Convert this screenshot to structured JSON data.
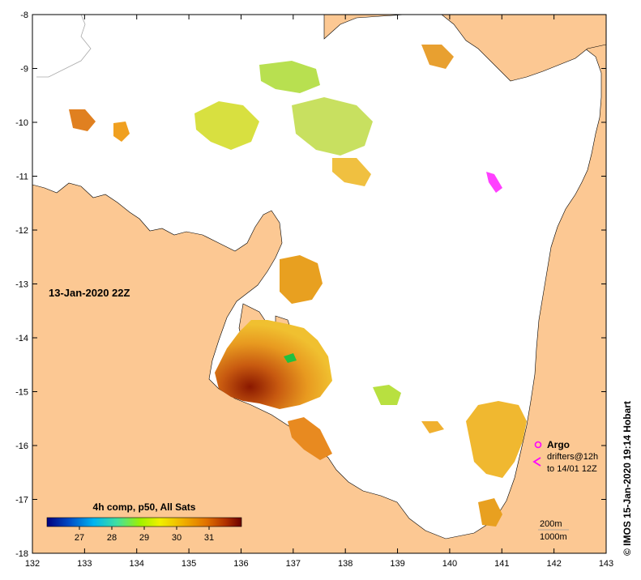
{
  "date_label": "13-Jan-2020 22Z",
  "axes": {
    "lon_ticks": [
      "132",
      "133",
      "134",
      "135",
      "136",
      "137",
      "138",
      "139",
      "140",
      "141",
      "142",
      "143"
    ],
    "lat_ticks": [
      "-8",
      "-9",
      "-10",
      "-11",
      "-12",
      "-13",
      "-14",
      "-15",
      "-16",
      "-17",
      "-18"
    ],
    "lon_range": [
      132,
      143
    ],
    "lat_range": [
      -18,
      -8
    ]
  },
  "colorbar": {
    "title": "4h comp, p50, All Sats",
    "ticks": [
      "27",
      "28",
      "29",
      "30",
      "31"
    ],
    "range": [
      26,
      32
    ],
    "colors": [
      "#00007f",
      "#0050c8",
      "#00b4f0",
      "#40e0a0",
      "#a0f000",
      "#f0f000",
      "#f0b000",
      "#e07000",
      "#b03000",
      "#6a0000"
    ]
  },
  "legend": {
    "argo_label": "Argo",
    "drifters_line1": "drifters@12h",
    "drifters_line2": "to 14/01 12Z",
    "contour_200": "200m",
    "contour_1000": "1000m",
    "argo_color": "#ff00ff"
  },
  "credit": "© IMOS 15-Jan-2020 19:14 Hobart",
  "colors": {
    "land": "#fcc893",
    "water_nodata": "#ffffff"
  }
}
